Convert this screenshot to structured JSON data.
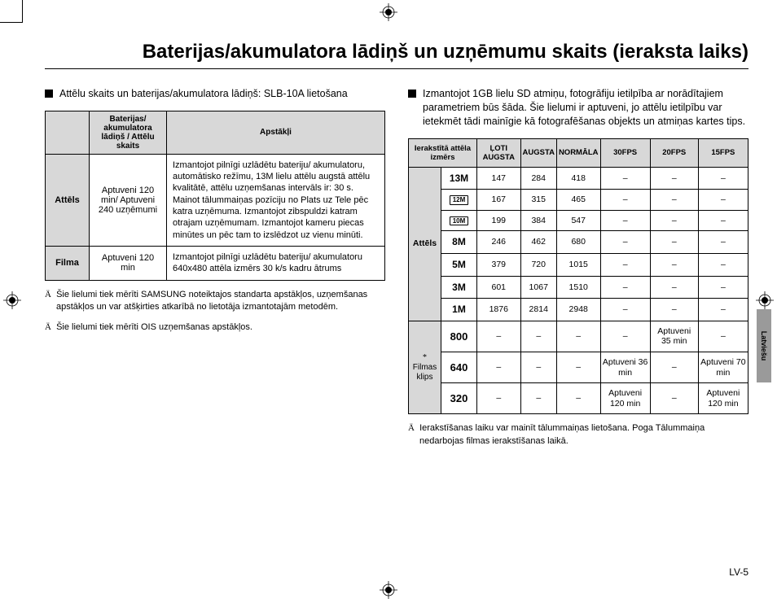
{
  "page_title": "Baterijas/akumulatora lādiņš un uzņēmumu skaits (ieraksta laiks)",
  "left": {
    "intro": "Attēlu skaits un baterijas/akumulatora lādiņš: SLB-10A lietošana",
    "table": {
      "headers": [
        "",
        "Baterijas/ akumulatora lādiņš / Attēlu skaits",
        "Apstākļi"
      ],
      "rows": [
        {
          "label": "Attēls",
          "value": "Aptuveni 120 min/ Aptuveni 240 uzņēmumi",
          "cond": "Izmantojot pilnīgi uzlādētu bateriju/ akumulatoru, automātisko režīmu, 13M lielu attēlu augstā attēlu kvalitātē, attēlu uzņemšanas intervāls ir: 30 s. Mainot tālummaiņas pozīciju no Plats uz Tele pēc katra uzņēmuma. Izmantojot zibspuldzi katram otrajam uzņēmumam. Izmantojot kameru piecas minūtes un pēc tam to izslēdzot uz vienu minūti."
        },
        {
          "label": "Filma",
          "value": "Aptuveni 120 min",
          "cond": "Izmantojot pilnīgi uzlādētu bateriju/ akumulatoru 640x480 attēla izmērs 30 k/s kadru ātrums"
        }
      ]
    },
    "foot1": "Šie lielumi tiek mērīti SAMSUNG noteiktajos standarta apstākļos, uzņemšanas apstākļos un var atšķirties atkarībā no lietotāja izmantotajām metodēm.",
    "foot2": "Šie lielumi tiek mērīti OIS uzņemšanas apstākļos."
  },
  "right": {
    "intro": "Izmantojot 1GB lielu SD atmiņu, fotogrāfiju ietilpība ar norādītajiem parametriem būs šāda. Šie lielumi ir aptuveni, jo attēlu ietilpību var ietekmēt tādi mainīgie kā fotografēšanas objekts un atmiņas kartes tips.",
    "table": {
      "headers": [
        "Ierakstītā attēla izmērs",
        "ĻOTI AUGSTA",
        "AUGSTA",
        "NORMĀLA",
        "30FPS",
        "20FPS",
        "15FPS"
      ],
      "group1_label": "Attēls",
      "group1": [
        {
          "size": "13M",
          "boxed": false,
          "v": [
            "147",
            "284",
            "418",
            "–",
            "–",
            "–"
          ]
        },
        {
          "size": "12M",
          "boxed": true,
          "v": [
            "167",
            "315",
            "465",
            "–",
            "–",
            "–"
          ]
        },
        {
          "size": "10M",
          "boxed": true,
          "v": [
            "199",
            "384",
            "547",
            "–",
            "–",
            "–"
          ]
        },
        {
          "size": "8M",
          "boxed": false,
          "v": [
            "246",
            "462",
            "680",
            "–",
            "–",
            "–"
          ]
        },
        {
          "size": "5M",
          "boxed": false,
          "v": [
            "379",
            "720",
            "1015",
            "–",
            "–",
            "–"
          ]
        },
        {
          "size": "3M",
          "boxed": false,
          "v": [
            "601",
            "1067",
            "1510",
            "–",
            "–",
            "–"
          ]
        },
        {
          "size": "1M",
          "boxed": false,
          "v": [
            "1876",
            "2814",
            "2948",
            "–",
            "–",
            "–"
          ]
        }
      ],
      "group2_label": "Filmas klips",
      "group2_prefix": "*",
      "group2": [
        {
          "size": "800",
          "v": [
            "–",
            "–",
            "–",
            "–",
            "Aptuveni 35 min",
            "–"
          ]
        },
        {
          "size": "640",
          "v": [
            "–",
            "–",
            "–",
            "Aptuveni 36 min",
            "–",
            "Aptuveni 70 min"
          ]
        },
        {
          "size": "320",
          "v": [
            "–",
            "–",
            "–",
            "Aptuveni 120 min",
            "–",
            "Aptuveni 120 min"
          ]
        }
      ]
    },
    "foot": "Ierakstīšanas laiku var mainīt tālummaiņas lietošana. Poga Tālummaiņa nedarbojas filmas ierakstīšanas laikā."
  },
  "side_tab": "Latviešu",
  "page_num": "LV-5",
  "styling": {
    "header_bg": "#d8d8d8",
    "border_color": "#000000",
    "body_font_size": 12.5,
    "table_font_size": 11,
    "title_font_size": 24
  }
}
